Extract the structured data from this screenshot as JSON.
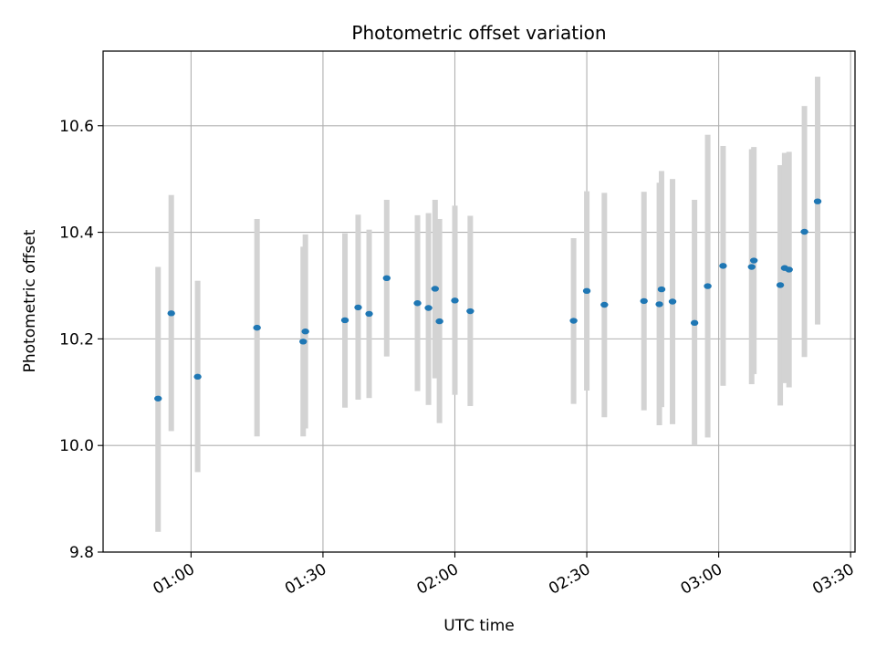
{
  "chart_data": {
    "type": "scatter",
    "title": "Photometric offset variation",
    "xlabel": "UTC time",
    "ylabel": "Photometric offset",
    "xlim": [
      "00:40",
      "03:31"
    ],
    "ylim": [
      9.8,
      10.74
    ],
    "grid": true,
    "colors": {
      "point": "#1f77b4",
      "errorbar": "#d3d3d3",
      "grid": "#b0b0b0"
    },
    "x_ticks": [
      "01:00",
      "01:30",
      "02:00",
      "02:30",
      "03:00",
      "03:30"
    ],
    "y_ticks": [
      "9.8",
      "10.0",
      "10.2",
      "10.4",
      "10.6"
    ],
    "points": [
      {
        "x": "00:52:30",
        "y": 10.088,
        "y_low": 9.838,
        "y_high": 10.335
      },
      {
        "x": "00:55:30",
        "y": 10.248,
        "y_low": 10.027,
        "y_high": 10.47
      },
      {
        "x": "01:01:30",
        "y": 10.129,
        "y_low": 9.95,
        "y_high": 10.309
      },
      {
        "x": "01:15:00",
        "y": 10.221,
        "y_low": 10.017,
        "y_high": 10.425
      },
      {
        "x": "01:25:30",
        "y": 10.195,
        "y_low": 10.017,
        "y_high": 10.373
      },
      {
        "x": "01:26:00",
        "y": 10.214,
        "y_low": 10.032,
        "y_high": 10.396
      },
      {
        "x": "01:35:00",
        "y": 10.235,
        "y_low": 10.071,
        "y_high": 10.398
      },
      {
        "x": "01:38:00",
        "y": 10.259,
        "y_low": 10.086,
        "y_high": 10.433
      },
      {
        "x": "01:40:30",
        "y": 10.247,
        "y_low": 10.089,
        "y_high": 10.405
      },
      {
        "x": "01:44:30",
        "y": 10.314,
        "y_low": 10.167,
        "y_high": 10.461
      },
      {
        "x": "01:51:30",
        "y": 10.267,
        "y_low": 10.102,
        "y_high": 10.432
      },
      {
        "x": "01:54:00",
        "y": 10.258,
        "y_low": 10.076,
        "y_high": 10.436
      },
      {
        "x": "01:55:30",
        "y": 10.294,
        "y_low": 10.126,
        "y_high": 10.461
      },
      {
        "x": "01:56:30",
        "y": 10.233,
        "y_low": 10.042,
        "y_high": 10.425
      },
      {
        "x": "02:00:00",
        "y": 10.272,
        "y_low": 10.095,
        "y_high": 10.45
      },
      {
        "x": "02:03:30",
        "y": 10.252,
        "y_low": 10.074,
        "y_high": 10.431
      },
      {
        "x": "02:27:00",
        "y": 10.234,
        "y_low": 10.078,
        "y_high": 10.389
      },
      {
        "x": "02:30:00",
        "y": 10.29,
        "y_low": 10.103,
        "y_high": 10.477
      },
      {
        "x": "02:34:00",
        "y": 10.264,
        "y_low": 10.053,
        "y_high": 10.474
      },
      {
        "x": "02:43:00",
        "y": 10.271,
        "y_low": 10.066,
        "y_high": 10.476
      },
      {
        "x": "02:46:30",
        "y": 10.265,
        "y_low": 10.038,
        "y_high": 10.493
      },
      {
        "x": "02:47:00",
        "y": 10.293,
        "y_low": 10.072,
        "y_high": 10.515
      },
      {
        "x": "02:49:30",
        "y": 10.27,
        "y_low": 10.04,
        "y_high": 10.5
      },
      {
        "x": "02:54:30",
        "y": 10.23,
        "y_low": 10.0,
        "y_high": 10.461
      },
      {
        "x": "02:57:30",
        "y": 10.299,
        "y_low": 10.015,
        "y_high": 10.583
      },
      {
        "x": "03:01:00",
        "y": 10.337,
        "y_low": 10.112,
        "y_high": 10.562
      },
      {
        "x": "03:07:30",
        "y": 10.335,
        "y_low": 10.115,
        "y_high": 10.556
      },
      {
        "x": "03:08:00",
        "y": 10.347,
        "y_low": 10.134,
        "y_high": 10.56
      },
      {
        "x": "03:14:00",
        "y": 10.301,
        "y_low": 10.075,
        "y_high": 10.526
      },
      {
        "x": "03:15:00",
        "y": 10.333,
        "y_low": 10.117,
        "y_high": 10.549
      },
      {
        "x": "03:16:00",
        "y": 10.33,
        "y_low": 10.109,
        "y_high": 10.551
      },
      {
        "x": "03:19:30",
        "y": 10.401,
        "y_low": 10.166,
        "y_high": 10.637
      },
      {
        "x": "03:22:30",
        "y": 10.458,
        "y_low": 10.227,
        "y_high": 10.692
      }
    ]
  }
}
